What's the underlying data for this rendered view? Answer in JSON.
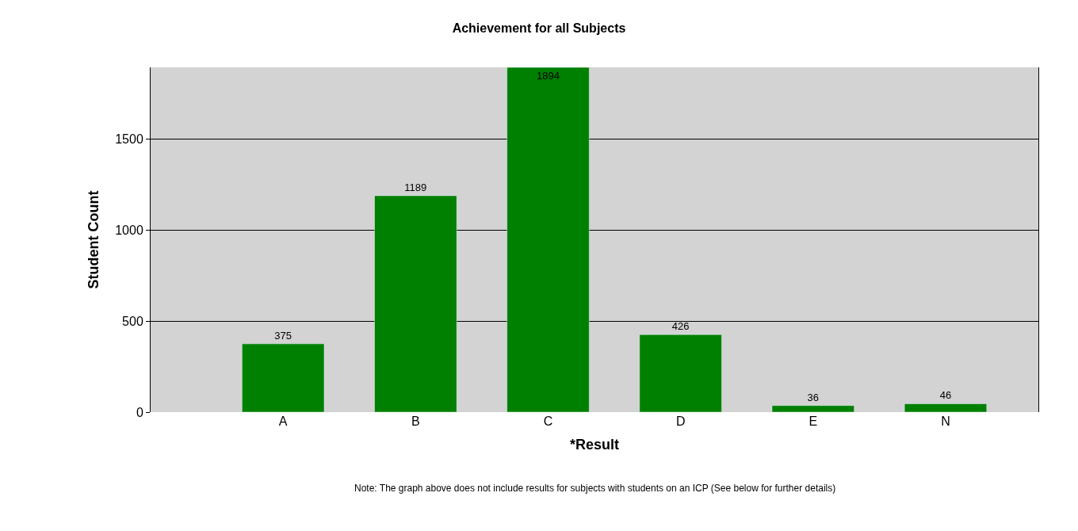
{
  "chart_data": {
    "type": "bar",
    "title": "Achievement for all Subjects",
    "xlabel": "*Result",
    "ylabel": "Student Count",
    "categories": [
      "A",
      "B",
      "C",
      "D",
      "E",
      "N"
    ],
    "values": [
      375,
      1189,
      1894,
      426,
      36,
      46
    ],
    "color": "#008000",
    "ylim": [
      0,
      1894
    ],
    "yticks": [
      0,
      500,
      1000,
      1500
    ],
    "grid": "y",
    "data_labels": true,
    "legend": false,
    "annotations": [
      "Note: The graph above does not include results for subjects with students on an ICP (See below for further details)"
    ]
  }
}
